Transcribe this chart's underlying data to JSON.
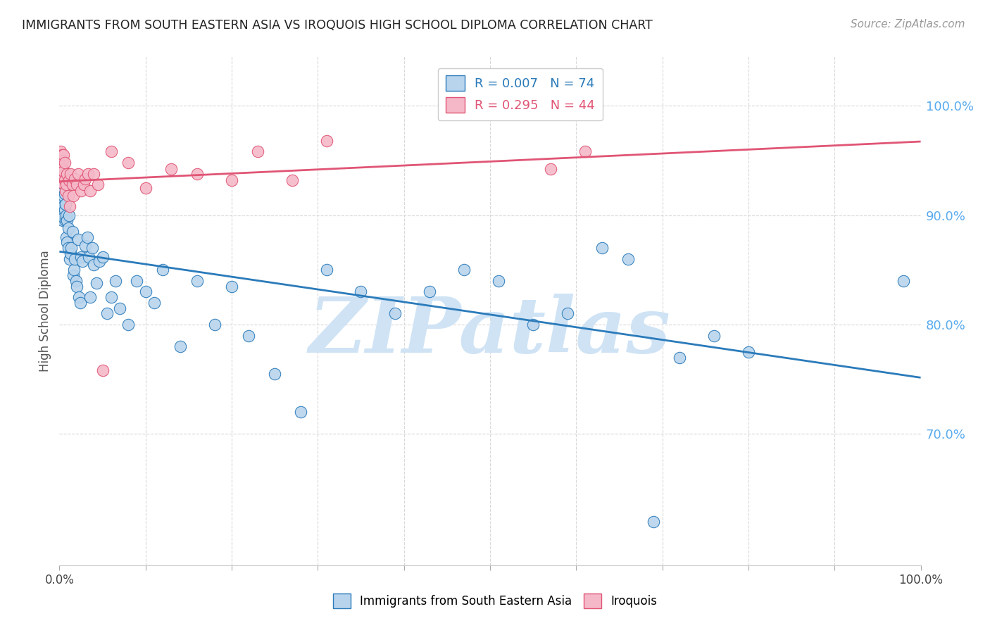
{
  "title": "IMMIGRANTS FROM SOUTH EASTERN ASIA VS IROQUOIS HIGH SCHOOL DIPLOMA CORRELATION CHART",
  "source": "Source: ZipAtlas.com",
  "ylabel": "High School Diploma",
  "legend_label1": "Immigrants from South Eastern Asia",
  "legend_label2": "Iroquois",
  "R1": 0.007,
  "N1": 74,
  "R2": 0.295,
  "N2": 44,
  "blue_color": "#b8d4ed",
  "pink_color": "#f5b8c8",
  "blue_line_color": "#2b7bba",
  "pink_line_color": "#e05575",
  "right_axis_color": "#5aabee",
  "watermark": "ZIPatlas",
  "watermark_color": "#cfe3f5",
  "background": "#ffffff",
  "grid_color": "#d8d8d8",
  "title_color": "#222222",
  "xlim": [
    0,
    1
  ],
  "ylim": [
    0.58,
    1.045
  ],
  "yticks": [
    0.7,
    0.8,
    0.9,
    1.0
  ],
  "ytick_labels": [
    "70.0%",
    "80.0%",
    "90.0%",
    "100.0%"
  ],
  "blue_x": [
    0.001,
    0.002,
    0.003,
    0.003,
    0.004,
    0.004,
    0.005,
    0.005,
    0.005,
    0.006,
    0.006,
    0.007,
    0.007,
    0.008,
    0.008,
    0.009,
    0.009,
    0.01,
    0.01,
    0.011,
    0.012,
    0.013,
    0.014,
    0.015,
    0.016,
    0.017,
    0.018,
    0.019,
    0.02,
    0.022,
    0.023,
    0.024,
    0.025,
    0.027,
    0.03,
    0.032,
    0.034,
    0.036,
    0.038,
    0.04,
    0.043,
    0.046,
    0.05,
    0.055,
    0.06,
    0.065,
    0.07,
    0.08,
    0.09,
    0.1,
    0.11,
    0.12,
    0.14,
    0.16,
    0.18,
    0.2,
    0.22,
    0.25,
    0.28,
    0.31,
    0.35,
    0.39,
    0.43,
    0.47,
    0.51,
    0.55,
    0.59,
    0.63,
    0.66,
    0.69,
    0.72,
    0.76,
    0.8,
    0.98
  ],
  "blue_y": [
    0.92,
    0.915,
    0.908,
    0.9,
    0.912,
    0.895,
    0.918,
    0.908,
    0.898,
    0.92,
    0.905,
    0.91,
    0.895,
    0.9,
    0.88,
    0.895,
    0.875,
    0.888,
    0.87,
    0.9,
    0.86,
    0.865,
    0.87,
    0.885,
    0.845,
    0.85,
    0.86,
    0.84,
    0.835,
    0.878,
    0.825,
    0.82,
    0.862,
    0.858,
    0.872,
    0.88,
    0.862,
    0.825,
    0.87,
    0.855,
    0.838,
    0.858,
    0.862,
    0.81,
    0.825,
    0.84,
    0.815,
    0.8,
    0.84,
    0.83,
    0.82,
    0.85,
    0.78,
    0.84,
    0.8,
    0.835,
    0.79,
    0.755,
    0.72,
    0.85,
    0.83,
    0.81,
    0.83,
    0.85,
    0.84,
    0.8,
    0.81,
    0.87,
    0.86,
    0.62,
    0.77,
    0.79,
    0.775,
    0.84
  ],
  "pink_x": [
    0.001,
    0.001,
    0.002,
    0.002,
    0.003,
    0.003,
    0.003,
    0.004,
    0.004,
    0.005,
    0.005,
    0.006,
    0.006,
    0.007,
    0.008,
    0.009,
    0.01,
    0.011,
    0.012,
    0.013,
    0.015,
    0.016,
    0.018,
    0.02,
    0.022,
    0.025,
    0.028,
    0.03,
    0.033,
    0.036,
    0.04,
    0.045,
    0.05,
    0.06,
    0.08,
    0.1,
    0.13,
    0.16,
    0.2,
    0.23,
    0.27,
    0.31,
    0.57,
    0.61
  ],
  "pink_y": [
    0.958,
    0.945,
    0.94,
    0.93,
    0.955,
    0.945,
    0.935,
    0.95,
    0.942,
    0.955,
    0.94,
    0.948,
    0.932,
    0.922,
    0.928,
    0.938,
    0.918,
    0.932,
    0.908,
    0.938,
    0.928,
    0.918,
    0.933,
    0.928,
    0.938,
    0.922,
    0.928,
    0.933,
    0.938,
    0.922,
    0.938,
    0.928,
    0.758,
    0.958,
    0.948,
    0.925,
    0.942,
    0.938,
    0.932,
    0.958,
    0.932,
    0.968,
    0.942,
    0.958
  ]
}
